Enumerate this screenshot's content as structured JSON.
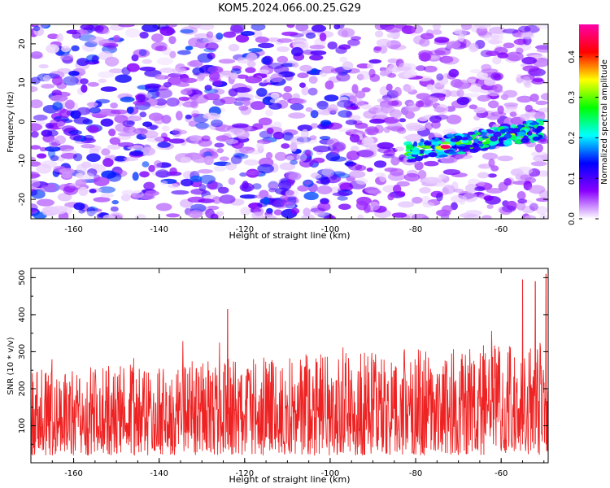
{
  "title": "KOM5.2024.066.00.25.G29",
  "chart_data": [
    {
      "type": "heatmap",
      "xlabel": "Height of straight line (km)",
      "ylabel": "Frequency (Hz)",
      "xlim": [
        -170,
        -49
      ],
      "ylim": [
        -25,
        25
      ],
      "xticks": [
        -160,
        -140,
        -120,
        -100,
        -80,
        -60
      ],
      "yticks": [
        -20,
        -10,
        0,
        10,
        20
      ],
      "colorbar": {
        "label": "Normalized spectral amplitude",
        "range": [
          0.0,
          0.48
        ],
        "ticks": [
          0.0,
          0.1,
          0.2,
          0.3,
          0.4
        ],
        "colors": [
          "#ffffff",
          "#8a00ff",
          "#0000ff",
          "#00ffff",
          "#00ff00",
          "#ffff00",
          "#ff0000",
          "#ff00aa"
        ]
      },
      "signal_band": {
        "x_range": [
          -82,
          -50
        ],
        "frequency_at_start": -8,
        "frequency_at_end": -2,
        "peak": {
          "x": -73,
          "y": -6.5,
          "amplitude": 0.45
        }
      },
      "background_amplitude": [
        0.0,
        0.15
      ],
      "grid": false
    },
    {
      "type": "line",
      "xlabel": "Height of straight line (km)",
      "ylabel": "SNR (10 * v/v)",
      "xlim": [
        -170,
        -49
      ],
      "ylim": [
        0,
        525
      ],
      "xticks": [
        -160,
        -140,
        -120,
        -100,
        -80,
        -60
      ],
      "yticks": [
        100,
        200,
        300,
        400,
        500
      ],
      "color": "#ee2222",
      "baseline_snr": [
        20,
        250
      ],
      "series_peaks": [
        {
          "x": -124,
          "y": 415
        },
        {
          "x": -55,
          "y": 495
        },
        {
          "x": -52,
          "y": 490
        },
        {
          "x": -49.5,
          "y": 510
        }
      ],
      "grid": false
    }
  ]
}
